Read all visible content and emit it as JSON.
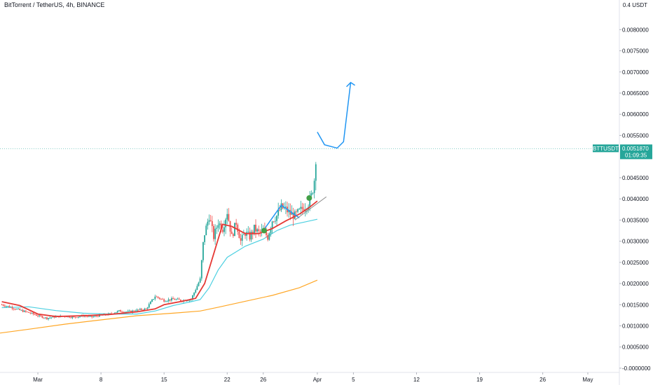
{
  "header": {
    "symbol_title": "BitTorrent / TetherUS, 4h, BINANCE",
    "currency_label": "0.4 USDT"
  },
  "price_tag": {
    "symbol": "BTTUSDT",
    "price": "0.0051870",
    "countdown": "01:09:35",
    "color": "#26a69a"
  },
  "colors": {
    "up": "#26a69a",
    "down": "#ef5350",
    "ma_fast": "#e53935",
    "ma_mid": "#4dd0e1",
    "ma_slow": "#ffa726",
    "projection": "#2196f3",
    "trend": "#888888",
    "marker": "#43a047"
  },
  "chart_data": {
    "type": "candlestick",
    "title": "BitTorrent / TetherUS, 4h, BINANCE",
    "y_axis": {
      "ticks": [
        "0.0080000",
        "0.0075000",
        "0.0070000",
        "0.0065000",
        "0.0060000",
        "0.0055000",
        "0.0045000",
        "0.0040000",
        "0.0035000",
        "0.0030000",
        "0.0025000",
        "0.0020000",
        "0.0015000",
        "0.0010000",
        "0.0005000",
        "-0.0000000"
      ],
      "range": [
        -0.0001,
        0.0087
      ],
      "position": "right"
    },
    "x_axis": {
      "ticks": [
        {
          "label": "Mar",
          "day": 1
        },
        {
          "label": "8",
          "day": 8
        },
        {
          "label": "15",
          "day": 15
        },
        {
          "label": "22",
          "day": 22
        },
        {
          "label": "26",
          "day": 26
        },
        {
          "label": "Apr",
          "day": 32
        },
        {
          "label": "5",
          "day": 36
        },
        {
          "label": "12",
          "day": 43
        },
        {
          "label": "19",
          "day": 50
        },
        {
          "label": "26",
          "day": 57
        },
        {
          "label": "May",
          "day": 62
        }
      ],
      "range_days": [
        -3.2,
        65.5
      ]
    },
    "last_price": 0.005187,
    "close_path": [
      [
        -3.0,
        0.0015
      ],
      [
        -2.0,
        0.00144
      ],
      [
        -1.0,
        0.00137
      ],
      [
        0.0,
        0.00131
      ],
      [
        1.0,
        0.00124
      ],
      [
        2.0,
        0.00118
      ],
      [
        3.0,
        0.00122
      ],
      [
        4.0,
        0.00123
      ],
      [
        5.0,
        0.0012
      ],
      [
        6.0,
        0.00124
      ],
      [
        7.0,
        0.00121
      ],
      [
        8.0,
        0.00125
      ],
      [
        9.0,
        0.00128
      ],
      [
        10.0,
        0.00135
      ],
      [
        11.0,
        0.00133
      ],
      [
        12.0,
        0.00137
      ],
      [
        13.0,
        0.0014
      ],
      [
        14.0,
        0.0017
      ],
      [
        15.0,
        0.0016
      ],
      [
        16.0,
        0.00163
      ],
      [
        17.0,
        0.0016
      ],
      [
        18.0,
        0.00163
      ],
      [
        19.0,
        0.0021
      ],
      [
        19.4,
        0.0031
      ],
      [
        20.0,
        0.0036
      ],
      [
        20.5,
        0.0031
      ],
      [
        21.0,
        0.00345
      ],
      [
        21.5,
        0.0033
      ],
      [
        22.0,
        0.0037
      ],
      [
        22.5,
        0.0031
      ],
      [
        23.0,
        0.00345
      ],
      [
        23.5,
        0.003
      ],
      [
        24.0,
        0.0032
      ],
      [
        24.5,
        0.0031
      ],
      [
        25.0,
        0.0033
      ],
      [
        25.5,
        0.0032
      ],
      [
        26.0,
        0.00325
      ],
      [
        26.5,
        0.0031
      ],
      [
        27.0,
        0.0035
      ],
      [
        27.5,
        0.0036
      ],
      [
        28.0,
        0.0038
      ],
      [
        28.5,
        0.00375
      ],
      [
        29.0,
        0.00365
      ],
      [
        29.5,
        0.0036
      ],
      [
        30.0,
        0.0037
      ],
      [
        30.5,
        0.0038
      ],
      [
        31.0,
        0.0039
      ],
      [
        31.4,
        0.0041
      ],
      [
        31.7,
        0.0045
      ],
      [
        31.9,
        0.0052
      ],
      [
        32.0,
        0.00519
      ]
    ],
    "ma_fast": [
      [
        -3.0,
        0.00157
      ],
      [
        -1.0,
        0.00148
      ],
      [
        1.0,
        0.00128
      ],
      [
        3.0,
        0.00122
      ],
      [
        6.0,
        0.00124
      ],
      [
        9.0,
        0.00127
      ],
      [
        12.0,
        0.00133
      ],
      [
        14.0,
        0.0014
      ],
      [
        15.0,
        0.0015
      ],
      [
        17.0,
        0.00158
      ],
      [
        18.5,
        0.00165
      ],
      [
        19.5,
        0.002
      ],
      [
        20.5,
        0.0027
      ],
      [
        21.5,
        0.0034
      ],
      [
        22.5,
        0.00335
      ],
      [
        24.0,
        0.00318
      ],
      [
        25.5,
        0.00318
      ],
      [
        27.0,
        0.0033
      ],
      [
        28.5,
        0.00348
      ],
      [
        30.0,
        0.00364
      ],
      [
        31.0,
        0.00378
      ],
      [
        32.0,
        0.00395
      ]
    ],
    "ma_mid": [
      [
        -3.0,
        0.00143
      ],
      [
        0.0,
        0.00145
      ],
      [
        3.0,
        0.00136
      ],
      [
        6.0,
        0.0013
      ],
      [
        9.0,
        0.00128
      ],
      [
        12.0,
        0.00128
      ],
      [
        14.0,
        0.00135
      ],
      [
        16.0,
        0.00148
      ],
      [
        18.0,
        0.00157
      ],
      [
        19.0,
        0.00162
      ],
      [
        20.0,
        0.0019
      ],
      [
        21.0,
        0.00232
      ],
      [
        22.0,
        0.00262
      ],
      [
        24.0,
        0.00288
      ],
      [
        26.0,
        0.00305
      ],
      [
        27.5,
        0.00325
      ],
      [
        29.0,
        0.00338
      ],
      [
        30.5,
        0.00345
      ],
      [
        32.0,
        0.00352
      ]
    ],
    "ma_slow": [
      [
        -3.2,
        0.00083
      ],
      [
        0.0,
        0.00092
      ],
      [
        4.0,
        0.00104
      ],
      [
        8.0,
        0.00114
      ],
      [
        12.0,
        0.00124
      ],
      [
        16.0,
        0.0013
      ],
      [
        19.0,
        0.00135
      ],
      [
        21.0,
        0.00144
      ],
      [
        24.0,
        0.00158
      ],
      [
        27.0,
        0.00172
      ],
      [
        30.0,
        0.0019
      ],
      [
        32.0,
        0.00208
      ]
    ],
    "trend_line": [
      [
        29.5,
        0.0035
      ],
      [
        33.0,
        0.00405
      ]
    ],
    "projection": [
      [
        32.0,
        0.00558
      ],
      [
        32.8,
        0.00528
      ],
      [
        34.2,
        0.0052
      ],
      [
        34.9,
        0.00535
      ],
      [
        35.7,
        0.00675
      ]
    ],
    "channel": [
      [
        26.0,
        0.00325
      ],
      [
        28.0,
        0.00385
      ],
      [
        30.0,
        0.00355
      ]
    ],
    "markers": [
      [
        26.1,
        0.00325
      ],
      [
        31.1,
        0.00402
      ]
    ]
  }
}
